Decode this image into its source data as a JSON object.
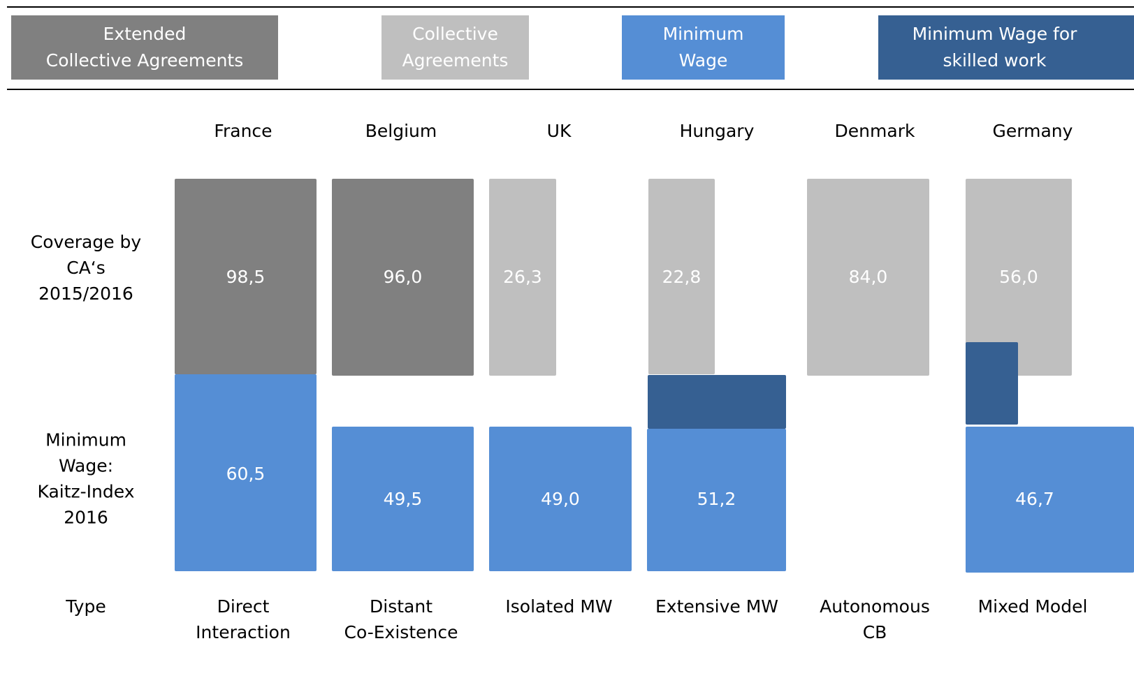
{
  "legend": [
    {
      "lines": [
        "Extended",
        "Collective Agreements"
      ],
      "color": "#808080"
    },
    {
      "lines": [
        "Collective",
        "Agreements"
      ],
      "color": "#bfbfbf"
    },
    {
      "lines": [
        "Minimum",
        "Wage"
      ],
      "color": "#558ed5"
    },
    {
      "lines": [
        "Minimum Wage for",
        "skilled work"
      ],
      "color": "#366092"
    }
  ],
  "row_labels": [
    {
      "lines": [
        "Coverage by",
        "CA‘s",
        "2015/2016"
      ]
    },
    {
      "lines": [
        "Minimum",
        "Wage:",
        "Kaitz-Index",
        "2016"
      ]
    },
    {
      "lines": [
        "Type"
      ]
    }
  ],
  "countries": [
    {
      "name": "France",
      "coverage": "98,5",
      "kaitz": "60,5",
      "type": [
        "Direct",
        "Interaction"
      ]
    },
    {
      "name": "Belgium",
      "coverage": "96,0",
      "kaitz": "49,5",
      "type": [
        "Distant",
        "Co-Existence"
      ]
    },
    {
      "name": "UK",
      "coverage": "26,3",
      "kaitz": "49,0",
      "type": [
        "Isolated MW"
      ]
    },
    {
      "name": "Hungary",
      "coverage": "22,8",
      "kaitz": "51,2",
      "type": [
        "Extensive MW"
      ]
    },
    {
      "name": "Denmark",
      "coverage": "84,0",
      "type": [
        "Autonomous",
        "CB"
      ]
    },
    {
      "name": "Germany",
      "coverage": "56,0",
      "kaitz": "46,7",
      "type": [
        "Mixed Model"
      ]
    }
  ]
}
